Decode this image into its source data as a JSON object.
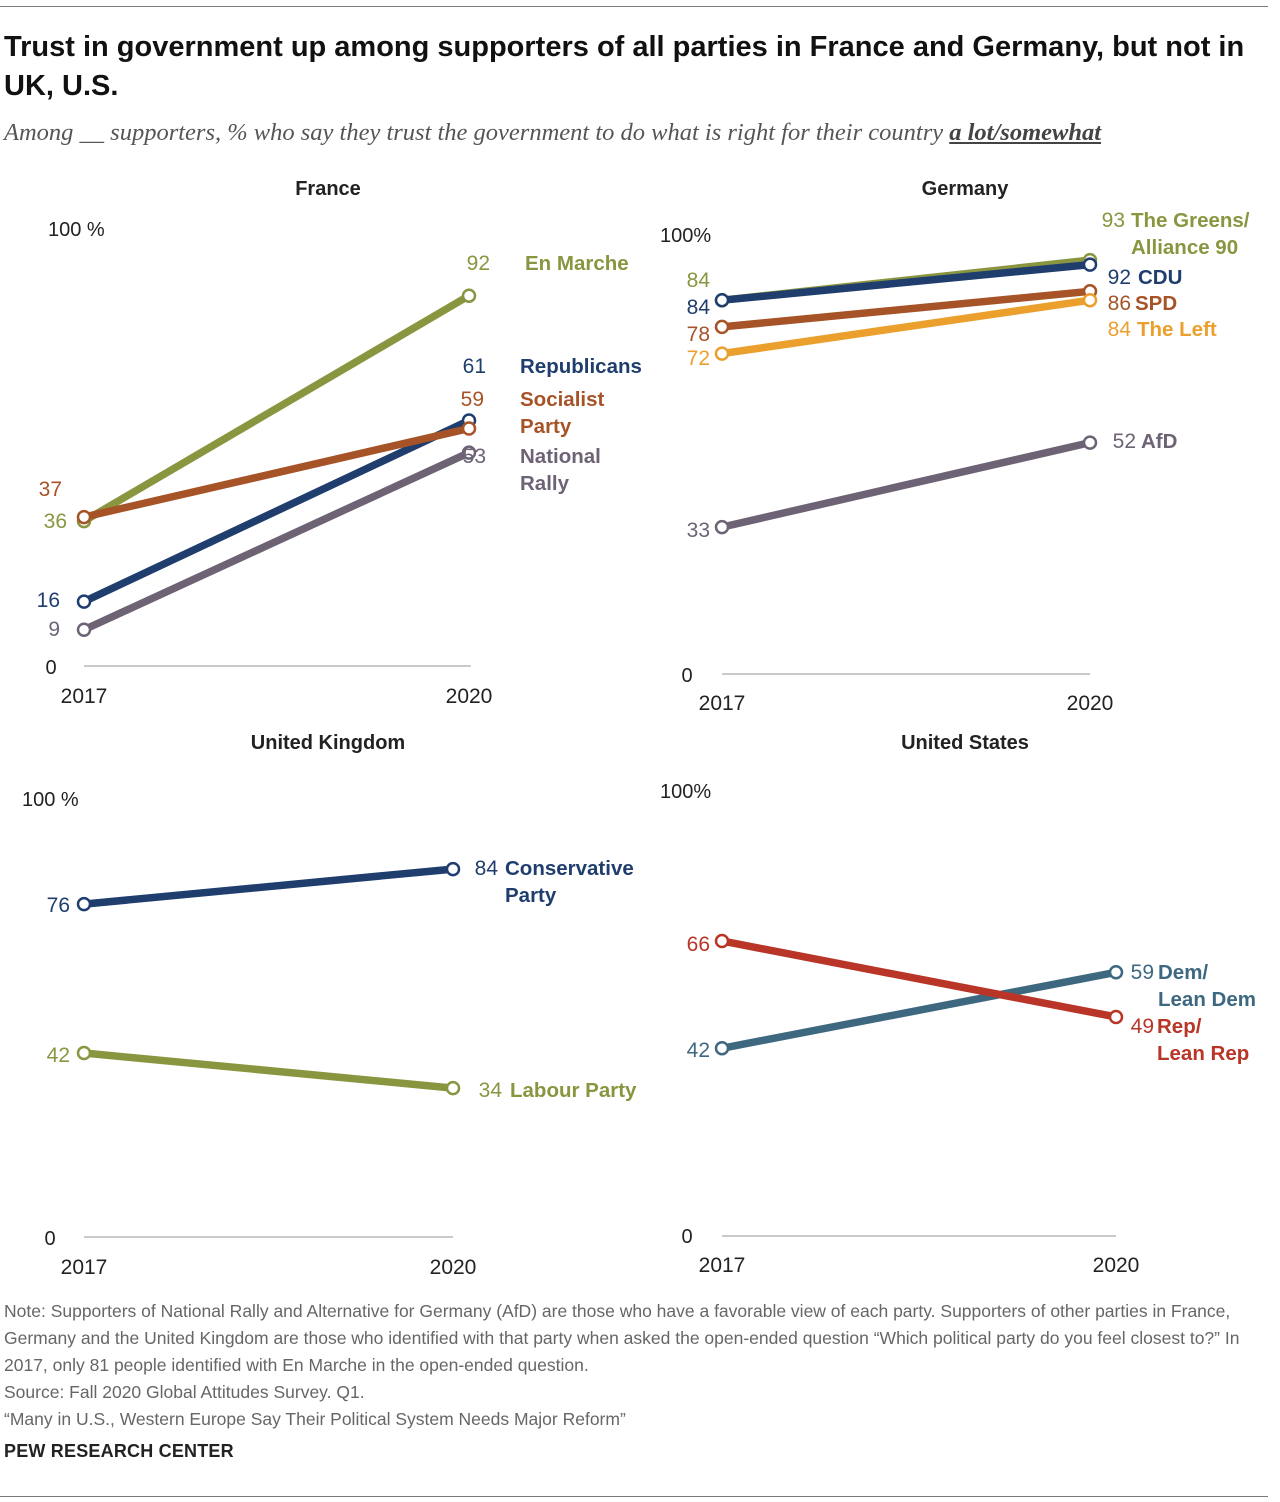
{
  "title": "Trust in government up among supporters of all parties in France and Germany, but not in UK, U.S.",
  "subtitle": {
    "lead": "Among __ supporters, % who say they trust the government to do what is right for their country ",
    "emphasis": "a lot/somewhat"
  },
  "colors": {
    "olive": "#8a9540",
    "navy": "#1f3e6e",
    "rust": "#a65427",
    "purple_gray": "#6d6375",
    "orange": "#eba02e",
    "slate": "#3e6880",
    "red": "#b83527",
    "axis": "#aaaaaa"
  },
  "chart_data": [
    {
      "type": "line",
      "title": "France",
      "x": [
        "2017",
        "2020"
      ],
      "ylim": [
        0,
        100
      ],
      "y_tick_labels": {
        "top": "100 %",
        "bottom": "0"
      },
      "series": [
        {
          "name": "En Marche",
          "values": [
            36,
            92
          ],
          "color": "olive",
          "labels": [
            "36",
            "92"
          ]
        },
        {
          "name": "Republicans",
          "values": [
            16,
            61
          ],
          "color": "navy",
          "labels": [
            "16",
            "61"
          ]
        },
        {
          "name": "Socialist Party",
          "values": [
            37,
            59
          ],
          "color": "rust",
          "labels": [
            "37",
            "59"
          ]
        },
        {
          "name": "National Rally",
          "values": [
            9,
            53
          ],
          "color": "purple_gray",
          "labels": [
            "9",
            "53"
          ]
        }
      ]
    },
    {
      "type": "line",
      "title": "Germany",
      "x": [
        "2017",
        "2020"
      ],
      "ylim": [
        0,
        100
      ],
      "y_tick_labels": {
        "top": "100%",
        "bottom": "0"
      },
      "series": [
        {
          "name": "The Greens/ Alliance 90",
          "values": [
            84,
            93
          ],
          "color": "olive",
          "labels": [
            "84",
            "93"
          ]
        },
        {
          "name": "CDU",
          "values": [
            84,
            92
          ],
          "color": "navy",
          "labels": [
            "84",
            "92"
          ]
        },
        {
          "name": "SPD",
          "values": [
            78,
            86
          ],
          "color": "rust",
          "labels": [
            "78",
            "86"
          ]
        },
        {
          "name": "The Left",
          "values": [
            72,
            84
          ],
          "color": "orange",
          "labels": [
            "72",
            "84"
          ]
        },
        {
          "name": "AfD",
          "values": [
            33,
            52
          ],
          "color": "purple_gray",
          "labels": [
            "33",
            "52"
          ]
        }
      ]
    },
    {
      "type": "line",
      "title": "United Kingdom",
      "x": [
        "2017",
        "2020"
      ],
      "ylim": [
        0,
        100
      ],
      "y_tick_labels": {
        "top": "100 %",
        "bottom": "0"
      },
      "series": [
        {
          "name": "Conservative Party",
          "values": [
            76,
            84
          ],
          "color": "navy",
          "labels": [
            "76",
            "84"
          ]
        },
        {
          "name": "Labour Party",
          "values": [
            42,
            34
          ],
          "color": "olive",
          "labels": [
            "42",
            "34"
          ]
        }
      ]
    },
    {
      "type": "line",
      "title": "United States",
      "x": [
        "2017",
        "2020"
      ],
      "ylim": [
        0,
        100
      ],
      "y_tick_labels": {
        "top": "100%",
        "bottom": "0"
      },
      "series": [
        {
          "name": "Dem/ Lean Dem",
          "values": [
            42,
            59
          ],
          "color": "slate",
          "labels": [
            "42",
            "59"
          ]
        },
        {
          "name": "Rep/ Lean Rep",
          "values": [
            66,
            49
          ],
          "color": "red",
          "labels": [
            "66",
            "49"
          ]
        }
      ]
    }
  ],
  "notes": {
    "note": "Note: Supporters of National Rally and Alternative for Germany (AfD) are those who have a favorable view of each party. Supporters of other parties in France, Germany and the United Kingdom are those who identified with that party when asked the open-ended question “Which political party do you feel closest to?” In 2017, only 81 people identified with En Marche in the open-ended question.",
    "source": "Source: Fall 2020 Global Attitudes Survey. Q1.",
    "report": "“Many in U.S., Western Europe Say Their Political System Needs Major Reform”"
  },
  "brand": "PEW RESEARCH CENTER"
}
